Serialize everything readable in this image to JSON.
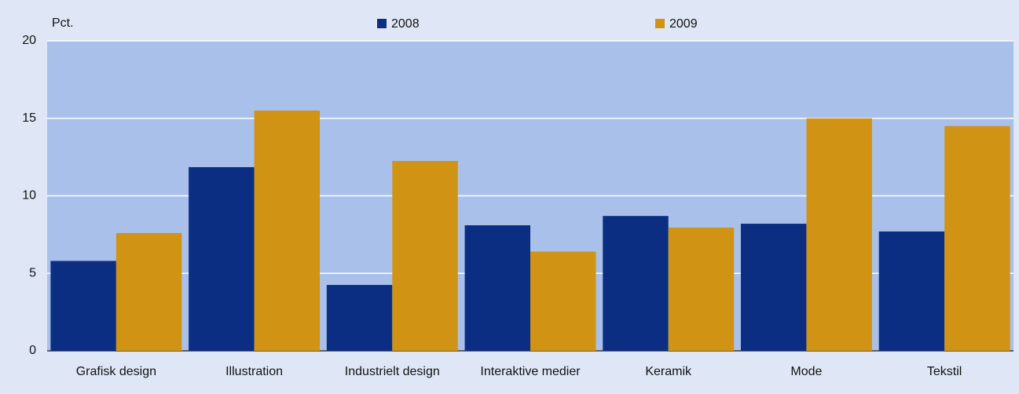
{
  "chart_data": {
    "type": "bar",
    "y_label": "Pct.",
    "categories": [
      "Grafisk design",
      "Illustration",
      "Industrielt design",
      "Interaktive medier",
      "Keramik",
      "Mode",
      "Tekstil"
    ],
    "series": [
      {
        "name": "2008",
        "color": "#0b2e83",
        "values": [
          5.8,
          11.85,
          4.25,
          8.1,
          8.7,
          8.2,
          7.7
        ]
      },
      {
        "name": "2009",
        "color": "#d09313",
        "values": [
          7.6,
          15.5,
          12.25,
          6.4,
          7.95,
          15.0,
          14.5
        ]
      }
    ],
    "ylim": [
      0,
      20
    ],
    "yticks": [
      0,
      5,
      10,
      15,
      20
    ],
    "grid": true
  }
}
